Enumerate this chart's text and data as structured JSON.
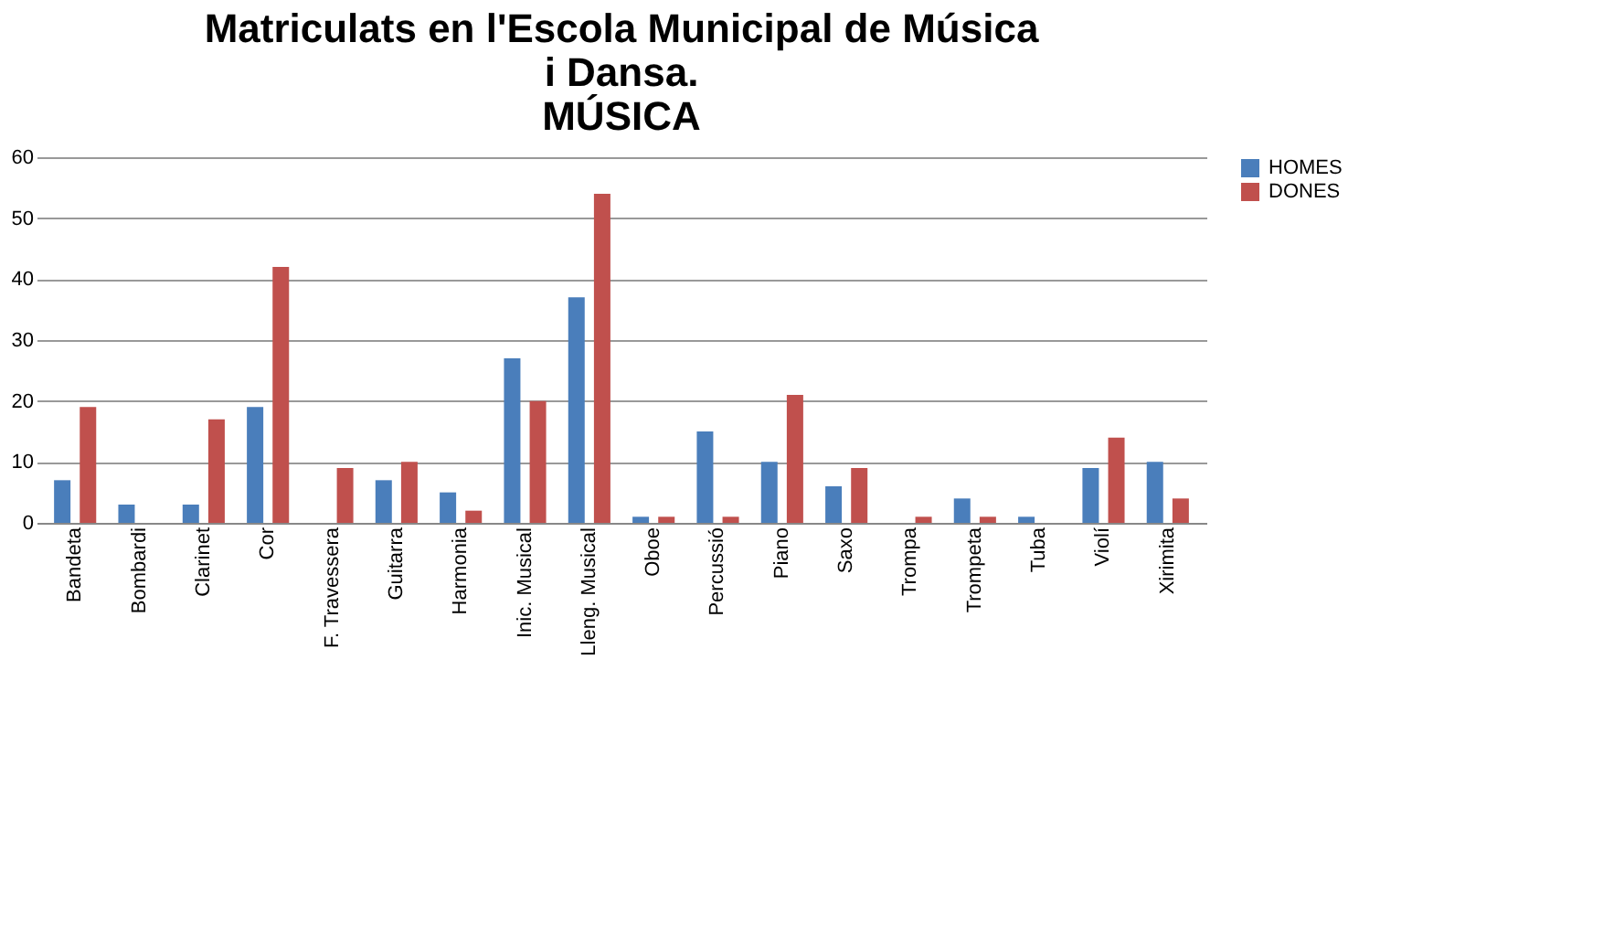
{
  "chart_data": {
    "type": "bar",
    "title": [
      "Matriculats en l'Escola Municipal de Música",
      "i Dansa.",
      "MÚSICA"
    ],
    "categories": [
      "Bandeta",
      "Bombardi",
      "Clarinet",
      "Cor",
      "F. Travessera",
      "Guitarra",
      "Harmonia",
      "Inic. Musical",
      "Lleng. Musical",
      "Oboe",
      "Percussió",
      "Piano",
      "Saxo",
      "Trompa",
      "Trompeta",
      "Tuba",
      "Violí",
      "Xirimita"
    ],
    "series": [
      {
        "name": "HOMES",
        "color": "#4a7ebb",
        "values": [
          7,
          3,
          3,
          19,
          0,
          7,
          5,
          27,
          37,
          1,
          15,
          10,
          6,
          0,
          4,
          1,
          9,
          10
        ]
      },
      {
        "name": "DONES",
        "color": "#c0504d",
        "values": [
          19,
          0,
          17,
          42,
          9,
          10,
          2,
          20,
          54,
          1,
          1,
          21,
          9,
          1,
          1,
          0,
          14,
          4
        ]
      }
    ],
    "ylim": [
      0,
      60
    ],
    "yticks": [
      0,
      10,
      20,
      30,
      40,
      50,
      60
    ],
    "grid": "y",
    "legend": "right"
  }
}
